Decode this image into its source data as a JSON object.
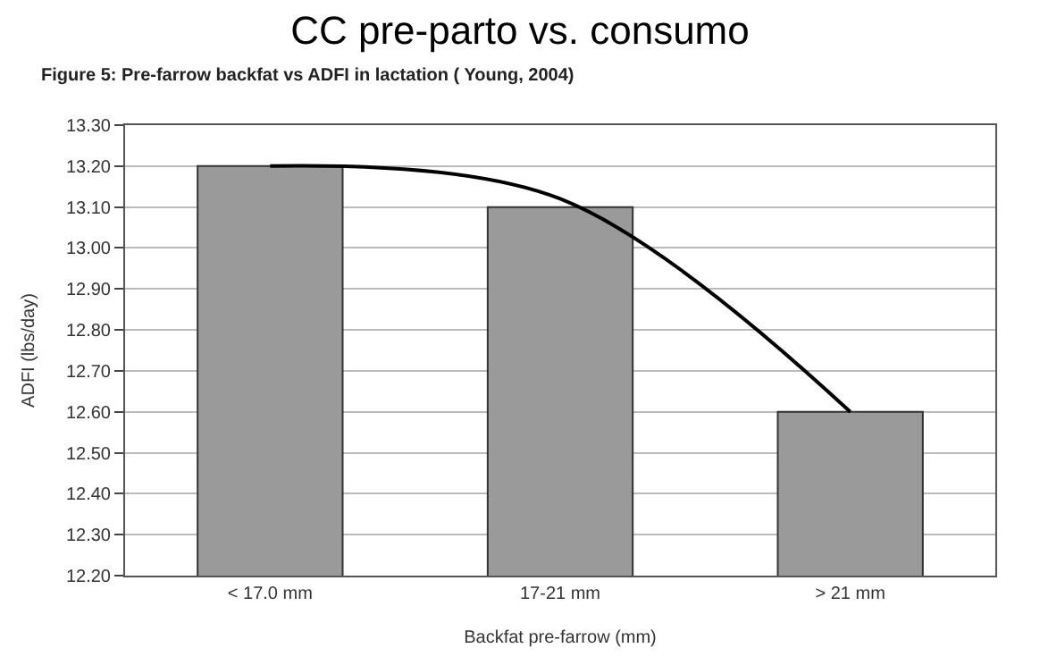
{
  "chart_data": {
    "type": "bar",
    "title": "CC pre-parto vs. consumo",
    "subtitle": "Figure 5: Pre-farrow backfat vs ADFI in lactation ( Young, 2004)",
    "xlabel": "Backfat pre-farrow (mm)",
    "ylabel": "ADFI (lbs/day)",
    "categories": [
      "< 17.0 mm",
      "17-21 mm",
      "> 21 mm"
    ],
    "series": [
      {
        "color": "#9a9a9a",
        "values": [
          13.2,
          13.1,
          12.6
        ]
      },
      {
        "type": "line",
        "color": "#000000",
        "values": [
          13.2,
          13.12,
          12.6
        ]
      }
    ],
    "ylim": [
      12.2,
      13.3
    ],
    "yticks": [
      {
        "value": 12.2,
        "label": "12.20"
      },
      {
        "value": 12.3,
        "label": "12.30"
      },
      {
        "value": 12.4,
        "label": "12.40"
      },
      {
        "value": 12.5,
        "label": "12.50"
      },
      {
        "value": 12.6,
        "label": "12.60"
      },
      {
        "value": 12.7,
        "label": "12.70"
      },
      {
        "value": 12.8,
        "label": "12.80"
      },
      {
        "value": 12.9,
        "label": "12.90"
      },
      {
        "value": 13.0,
        "label": "13.00"
      },
      {
        "value": 13.1,
        "label": "13.10"
      },
      {
        "value": 13.2,
        "label": "13.20"
      },
      {
        "value": 13.3,
        "label": "13.30"
      }
    ],
    "grid": "y",
    "marker": "none"
  }
}
